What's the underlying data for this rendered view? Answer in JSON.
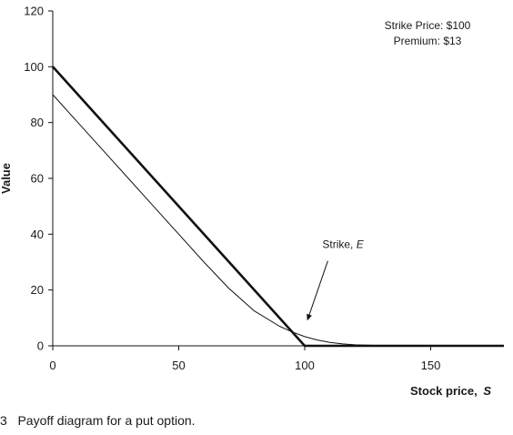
{
  "caption": "3   Payoff diagram for a put option.",
  "chart_data": {
    "type": "line",
    "xlabel": "Stock price,",
    "xlabel_symbol": "S",
    "ylabel": "Value",
    "xlim": [
      0,
      180
    ],
    "ylim": [
      0,
      120
    ],
    "x_ticks": [
      0,
      50,
      100,
      150
    ],
    "y_ticks": [
      0,
      20,
      40,
      60,
      80,
      100,
      120
    ],
    "grid": false,
    "legend": "none",
    "annotations": {
      "info_lines": [
        "Strike Price: $100",
        "Premium: $13"
      ],
      "strike_label": "Strike,",
      "strike_symbol": "E",
      "strike_label_at": [
        107,
        35
      ],
      "strike_arrow_tip": [
        101,
        9
      ]
    },
    "series": [
      {
        "role": "payoff",
        "style": "thick",
        "color": "#111111",
        "x": [
          0,
          100,
          180
        ],
        "y": [
          100,
          0,
          0
        ]
      },
      {
        "role": "option value",
        "style": "thin",
        "color": "#111111",
        "x": [
          0,
          10,
          20,
          30,
          40,
          50,
          60,
          70,
          80,
          90,
          95,
          100,
          105,
          110,
          115,
          120,
          130,
          140,
          150,
          160,
          180
        ],
        "y": [
          90,
          80,
          70,
          60,
          50,
          40,
          30,
          20.5,
          12.5,
          7,
          5,
          3.3,
          2.1,
          1.2,
          0.7,
          0.35,
          0.1,
          0.02,
          0,
          0,
          0
        ]
      }
    ]
  }
}
